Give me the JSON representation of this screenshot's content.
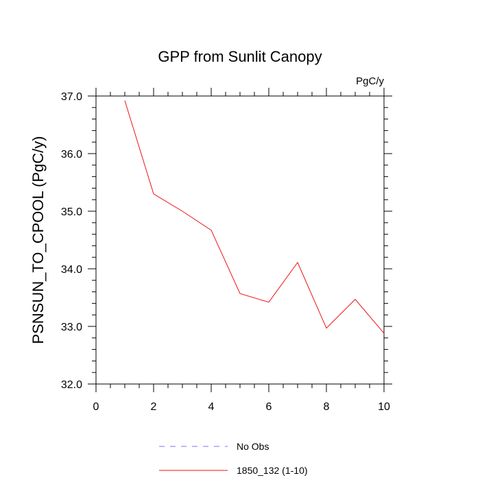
{
  "chart_data": {
    "type": "line",
    "title": "GPP from Sunlit Canopy",
    "units_label": "PgC/y",
    "ylabel": "PSNSUN_TO_CPOOL  (PgC/y)",
    "xlabel": "",
    "xlim": [
      0,
      10
    ],
    "ylim": [
      32.0,
      37.0
    ],
    "x_ticks": [
      0,
      2,
      4,
      6,
      8,
      10
    ],
    "x_tick_labels": [
      "0",
      "2",
      "4",
      "6",
      "8",
      "10"
    ],
    "y_ticks": [
      32.0,
      33.0,
      34.0,
      35.0,
      36.0,
      37.0
    ],
    "y_tick_labels": [
      "32.0",
      "33.0",
      "34.0",
      "35.0",
      "36.0",
      "37.0"
    ],
    "grid": false,
    "legend_position": "bottom-center",
    "series": [
      {
        "name": "No Obs",
        "color": "#7777ee",
        "style": "dashed",
        "x": [],
        "y": []
      },
      {
        "name": "1850_132 (1-10)",
        "color": "#ee1111",
        "style": "solid",
        "x": [
          1,
          2,
          3,
          4,
          5,
          6,
          7,
          8,
          9,
          10
        ],
        "y": [
          36.92,
          35.3,
          35.0,
          34.67,
          33.57,
          33.42,
          34.11,
          32.97,
          33.47,
          32.88
        ]
      }
    ]
  }
}
